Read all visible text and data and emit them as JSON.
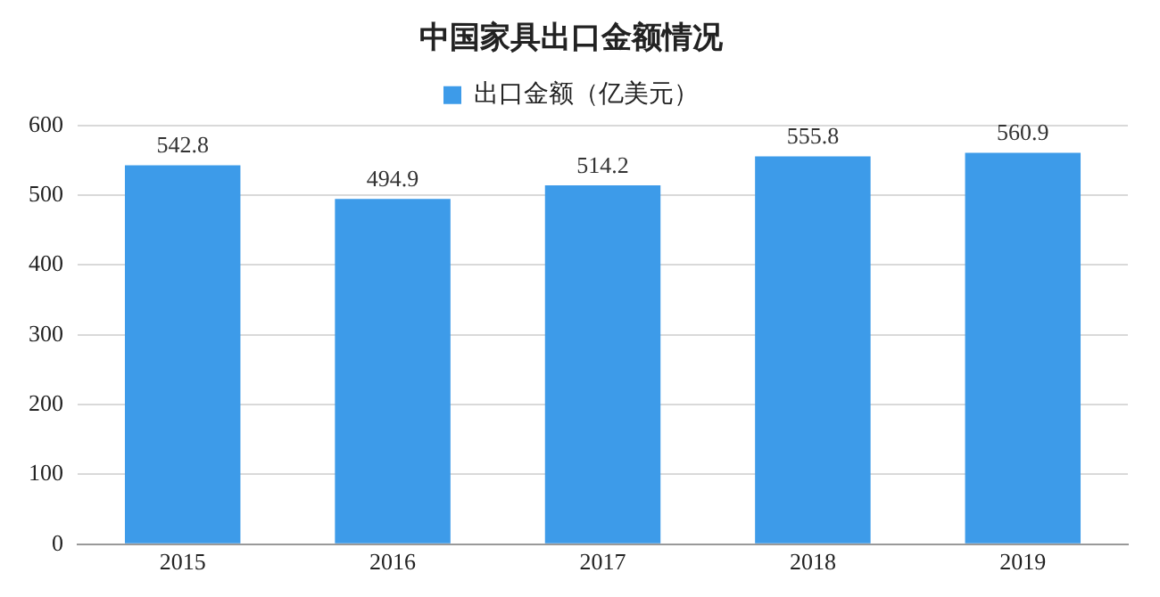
{
  "chart_data": {
    "type": "bar",
    "title": "中国家具出口金额情况",
    "categories": [
      "2015",
      "2016",
      "2017",
      "2018",
      "2019"
    ],
    "series": [
      {
        "name": "出口金额（亿美元）",
        "color": "#3d9be9",
        "values": [
          542.8,
          494.9,
          514.2,
          555.8,
          560.9
        ]
      }
    ],
    "ylim": [
      0,
      600
    ],
    "yticks": [
      0,
      100,
      200,
      300,
      400,
      500,
      600
    ],
    "grid": "y",
    "legend": "top",
    "data_labels": true
  }
}
